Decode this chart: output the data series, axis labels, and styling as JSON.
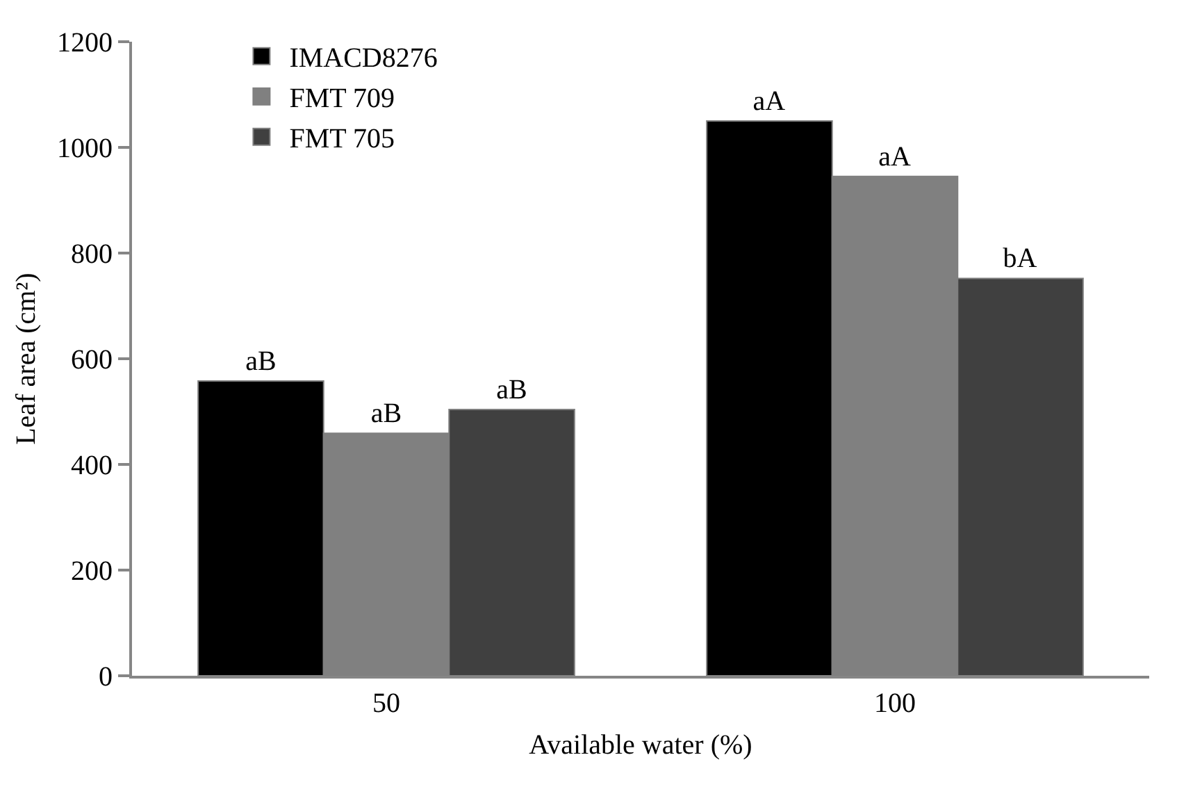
{
  "chart_data": {
    "type": "bar",
    "xlabel": "Available water (%)",
    "ylabel": "Leaf area (cm²)",
    "categories": [
      "50",
      "100"
    ],
    "series": [
      {
        "name": "IMACD8276",
        "color": "#000000",
        "values": [
          558,
          1050
        ],
        "value_labels": [
          "aB",
          "aA"
        ]
      },
      {
        "name": "FMT 709",
        "color": "#808080",
        "values": [
          459,
          945
        ],
        "value_labels": [
          "aB",
          "aA"
        ]
      },
      {
        "name": "FMT 705",
        "color": "#404040",
        "values": [
          504,
          752
        ],
        "value_labels": [
          "aB",
          "bA"
        ]
      }
    ],
    "ylim": [
      0,
      1200
    ],
    "yticks": [
      0,
      200,
      400,
      600,
      800,
      1000,
      1200
    ],
    "grid": false,
    "legend": "top left"
  }
}
